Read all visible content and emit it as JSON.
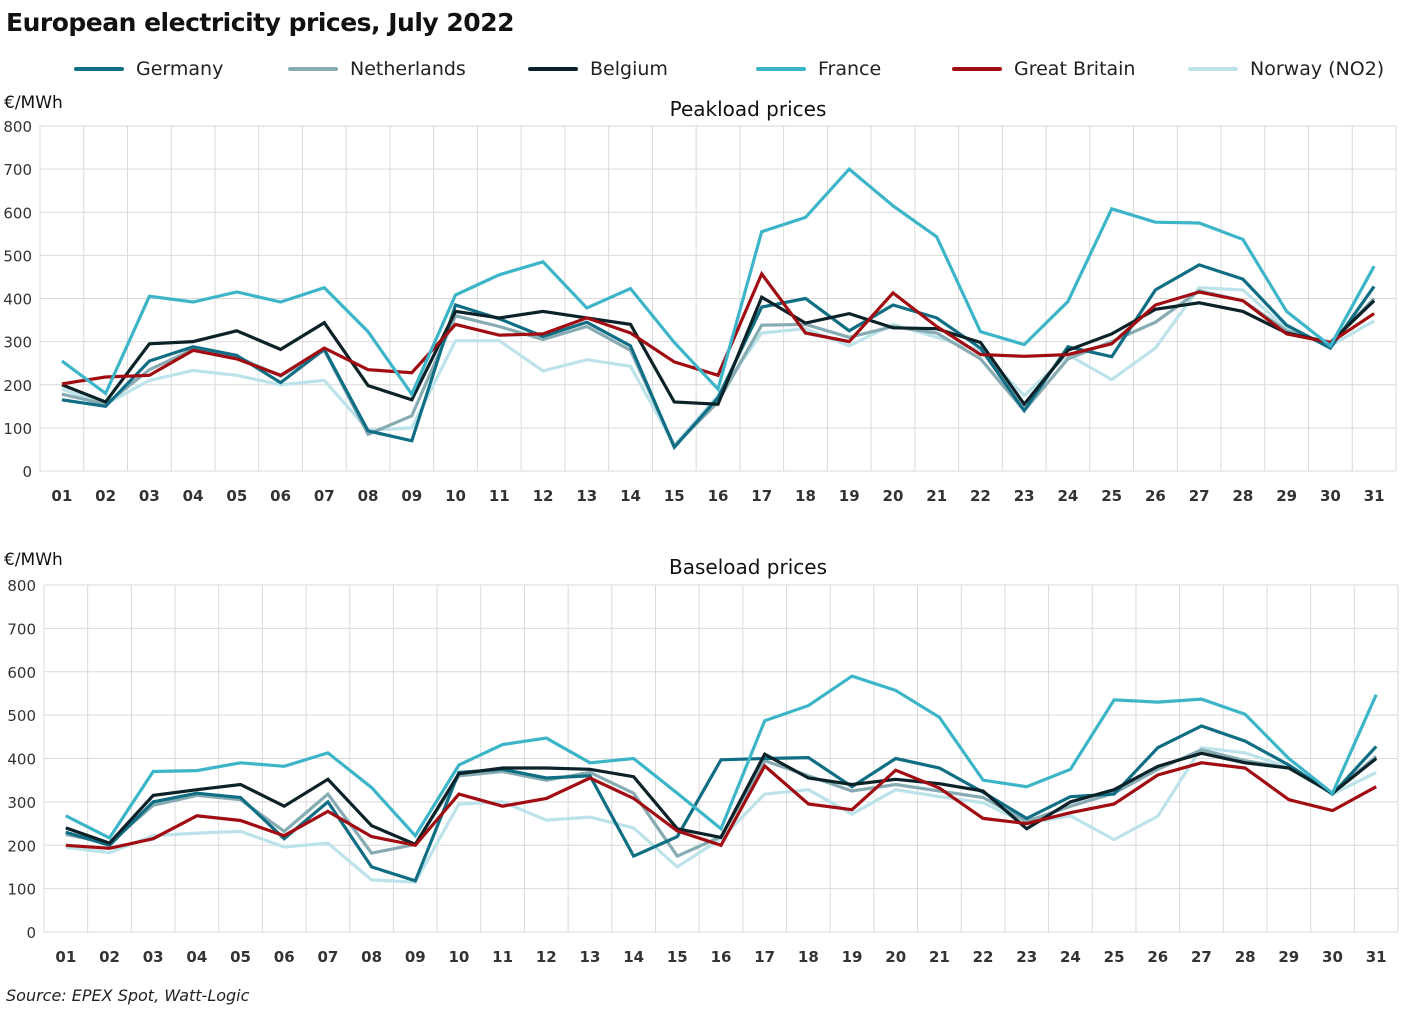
{
  "title": "European electricity prices, July 2022",
  "source": "Source: EPEX Spot, Watt-Logic",
  "legend": [
    {
      "name": "Germany",
      "color": "#0f6e84"
    },
    {
      "name": "Netherlands",
      "color": "#86abb2"
    },
    {
      "name": "Belgium",
      "color": "#0b2229"
    },
    {
      "name": "France",
      "color": "#3db5c9"
    },
    {
      "name": "Great Britain",
      "color": "#a00c12"
    },
    {
      "name": "Norway (NO2)",
      "color": "#bde3ea"
    }
  ],
  "chart_data": [
    {
      "type": "line",
      "title": "Peakload prices",
      "ylabel": "€/MWh",
      "xlabel": "",
      "ylim": [
        0,
        800
      ],
      "yticks": [
        0,
        100,
        200,
        300,
        400,
        500,
        600,
        700,
        800
      ],
      "grid": true,
      "legend_position": "top",
      "categories": [
        "01",
        "02",
        "03",
        "04",
        "05",
        "06",
        "07",
        "08",
        "09",
        "10",
        "11",
        "12",
        "13",
        "14",
        "15",
        "16",
        "17",
        "18",
        "19",
        "20",
        "21",
        "22",
        "23",
        "24",
        "25",
        "26",
        "27",
        "28",
        "29",
        "30",
        "31"
      ],
      "series": [
        {
          "name": "Norway (NO2)",
          "color": "#bde3ea",
          "values": [
            190,
            155,
            210,
            233,
            222,
            200,
            210,
            95,
            100,
            302,
            302,
            232,
            258,
            243,
            60,
            175,
            320,
            330,
            290,
            340,
            310,
            280,
            175,
            270,
            212,
            285,
            425,
            420,
            330,
            290,
            348
          ]
        },
        {
          "name": "Netherlands",
          "color": "#86abb2",
          "values": [
            178,
            155,
            235,
            282,
            265,
            220,
            280,
            85,
            128,
            360,
            335,
            305,
            335,
            280,
            58,
            160,
            338,
            340,
            310,
            335,
            320,
            260,
            140,
            260,
            300,
            345,
            418,
            395,
            325,
            295,
            400
          ]
        },
        {
          "name": "Germany",
          "color": "#0f6e84",
          "values": [
            165,
            150,
            255,
            288,
            268,
            205,
            282,
            93,
            70,
            385,
            353,
            312,
            345,
            290,
            55,
            170,
            380,
            400,
            325,
            385,
            355,
            285,
            140,
            288,
            265,
            420,
            478,
            445,
            338,
            285,
            428
          ]
        },
        {
          "name": "Belgium",
          "color": "#0b2229",
          "values": [
            200,
            160,
            295,
            300,
            325,
            282,
            344,
            198,
            165,
            370,
            355,
            370,
            355,
            340,
            160,
            155,
            403,
            343,
            365,
            332,
            330,
            298,
            155,
            280,
            318,
            375,
            390,
            370,
            320,
            298,
            395
          ]
        },
        {
          "name": "Great Britain",
          "color": "#a00c12",
          "values": [
            202,
            218,
            222,
            280,
            260,
            222,
            285,
            235,
            228,
            340,
            315,
            318,
            355,
            320,
            253,
            222,
            457,
            320,
            300,
            413,
            335,
            270,
            266,
            270,
            295,
            385,
            415,
            395,
            318,
            298,
            365
          ]
        },
        {
          "name": "France",
          "color": "#3db5c9",
          "values": [
            255,
            180,
            405,
            392,
            415,
            392,
            425,
            323,
            178,
            408,
            455,
            485,
            378,
            423,
            298,
            190,
            555,
            588,
            700,
            615,
            543,
            323,
            293,
            393,
            608,
            577,
            575,
            537,
            370,
            290,
            475
          ]
        }
      ]
    },
    {
      "type": "line",
      "title": "Baseload prices",
      "ylabel": "€/MWh",
      "xlabel": "",
      "ylim": [
        0,
        800
      ],
      "yticks": [
        0,
        100,
        200,
        300,
        400,
        500,
        600,
        700,
        800
      ],
      "grid": true,
      "categories": [
        "01",
        "02",
        "03",
        "04",
        "05",
        "06",
        "07",
        "08",
        "09",
        "10",
        "11",
        "12",
        "13",
        "14",
        "15",
        "16",
        "17",
        "18",
        "19",
        "20",
        "21",
        "22",
        "23",
        "24",
        "25",
        "26",
        "27",
        "28",
        "29",
        "30",
        "31"
      ],
      "series": [
        {
          "name": "Norway (NO2)",
          "color": "#bde3ea",
          "values": [
            195,
            183,
            222,
            228,
            232,
            196,
            205,
            120,
            115,
            295,
            300,
            258,
            265,
            240,
            150,
            215,
            318,
            328,
            272,
            328,
            312,
            298,
            250,
            268,
            213,
            267,
            425,
            413,
            380,
            318,
            368
          ]
        },
        {
          "name": "Netherlands",
          "color": "#86abb2",
          "values": [
            225,
            205,
            292,
            315,
            305,
            232,
            318,
            182,
            202,
            360,
            370,
            350,
            368,
            320,
            175,
            220,
            395,
            360,
            325,
            340,
            325,
            310,
            255,
            290,
            320,
            375,
            420,
            395,
            378,
            320,
            405
          ]
        },
        {
          "name": "Germany",
          "color": "#0f6e84",
          "values": [
            230,
            200,
            300,
            320,
            310,
            215,
            300,
            150,
            118,
            368,
            375,
            355,
            360,
            175,
            220,
            397,
            400,
            402,
            335,
            400,
            378,
            322,
            262,
            312,
            318,
            425,
            475,
            440,
            385,
            318,
            428
          ]
        },
        {
          "name": "Belgium",
          "color": "#0b2229",
          "values": [
            240,
            205,
            315,
            328,
            340,
            290,
            352,
            245,
            202,
            365,
            378,
            378,
            375,
            358,
            238,
            218,
            410,
            355,
            340,
            352,
            342,
            325,
            238,
            300,
            328,
            382,
            412,
            390,
            378,
            320,
            400
          ]
        },
        {
          "name": "Great Britain",
          "color": "#a00c12",
          "values": [
            200,
            193,
            215,
            268,
            257,
            222,
            278,
            220,
            200,
            318,
            290,
            308,
            355,
            308,
            233,
            200,
            383,
            295,
            282,
            373,
            332,
            262,
            250,
            275,
            295,
            362,
            390,
            378,
            305,
            280,
            335
          ]
        },
        {
          "name": "France",
          "color": "#3db5c9",
          "values": [
            268,
            217,
            370,
            372,
            390,
            382,
            413,
            333,
            222,
            385,
            432,
            447,
            390,
            400,
            320,
            238,
            487,
            522,
            590,
            557,
            495,
            350,
            335,
            375,
            535,
            530,
            537,
            502,
            400,
            320,
            547
          ]
        }
      ]
    }
  ]
}
